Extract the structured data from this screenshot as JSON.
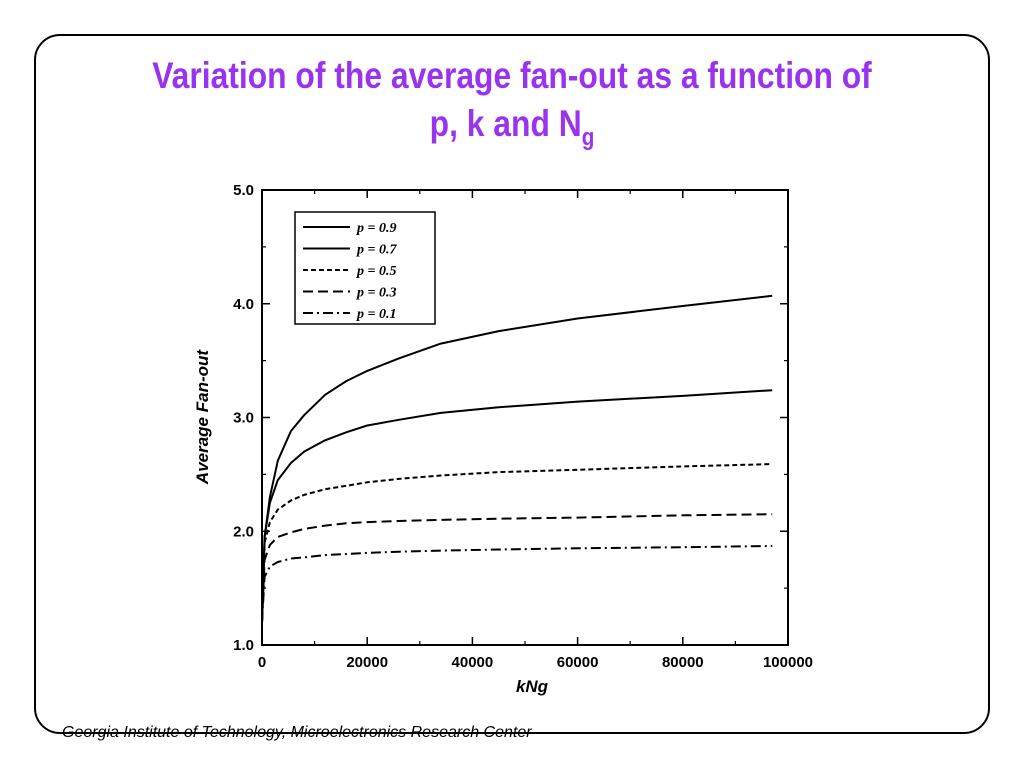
{
  "slide": {
    "title_main": "Variation of the average fan-out as a function of",
    "title_line2": "p, k and N",
    "title_sub": "g",
    "footer": "Georgia Institute of Technology, Microelectronics Research Center"
  },
  "chart_data": {
    "type": "line",
    "title": "",
    "xlabel": "kNg",
    "ylabel": "Average Fan-out",
    "xlim": [
      0,
      100000
    ],
    "ylim": [
      1.0,
      5.0
    ],
    "x_ticks": [
      0,
      20000,
      40000,
      60000,
      80000,
      100000
    ],
    "x_tick_labels": [
      "0",
      "20000",
      "40000",
      "60000",
      "80000",
      "100000"
    ],
    "y_ticks": [
      1.0,
      2.0,
      3.0,
      4.0,
      5.0
    ],
    "y_tick_labels": [
      "1.0",
      "2.0",
      "3.0",
      "4.0",
      "5.0"
    ],
    "legend_position": "top-left",
    "grid": false,
    "series": [
      {
        "name": "p = 0.9",
        "dash": "solid",
        "x": [
          0,
          500,
          1500,
          3000,
          5500,
          8000,
          12000,
          16000,
          20000,
          26000,
          34000,
          45000,
          60000,
          80000,
          97000
        ],
        "y": [
          1.2,
          1.95,
          2.3,
          2.62,
          2.88,
          3.02,
          3.2,
          3.32,
          3.41,
          3.52,
          3.65,
          3.76,
          3.87,
          3.98,
          4.07
        ]
      },
      {
        "name": "p = 0.7",
        "dash": "solid",
        "x": [
          0,
          500,
          1500,
          3000,
          5500,
          8000,
          12000,
          16000,
          20000,
          26000,
          34000,
          45000,
          60000,
          80000,
          97000
        ],
        "y": [
          1.2,
          1.95,
          2.25,
          2.45,
          2.6,
          2.7,
          2.8,
          2.87,
          2.93,
          2.98,
          3.04,
          3.09,
          3.14,
          3.19,
          3.24
        ]
      },
      {
        "name": "p = 0.5",
        "dash": "short",
        "x": [
          0,
          500,
          1500,
          3000,
          5500,
          8000,
          12000,
          16000,
          20000,
          26000,
          34000,
          45000,
          60000,
          80000,
          97000
        ],
        "y": [
          1.2,
          1.9,
          2.08,
          2.19,
          2.27,
          2.32,
          2.37,
          2.4,
          2.43,
          2.46,
          2.49,
          2.52,
          2.54,
          2.57,
          2.59
        ]
      },
      {
        "name": "p = 0.3",
        "dash": "long",
        "x": [
          0,
          500,
          1500,
          3000,
          5500,
          8000,
          12000,
          16000,
          20000,
          26000,
          34000,
          45000,
          60000,
          80000,
          97000
        ],
        "y": [
          1.2,
          1.75,
          1.88,
          1.95,
          1.99,
          2.02,
          2.05,
          2.07,
          2.08,
          2.09,
          2.1,
          2.11,
          2.12,
          2.14,
          2.15
        ]
      },
      {
        "name": "p = 0.1",
        "dash": "dashdot",
        "x": [
          0,
          500,
          1500,
          3000,
          5500,
          8000,
          12000,
          16000,
          20000,
          26000,
          34000,
          45000,
          60000,
          80000,
          97000
        ],
        "y": [
          1.2,
          1.6,
          1.69,
          1.73,
          1.76,
          1.77,
          1.79,
          1.8,
          1.81,
          1.82,
          1.83,
          1.84,
          1.85,
          1.86,
          1.87
        ]
      }
    ]
  }
}
